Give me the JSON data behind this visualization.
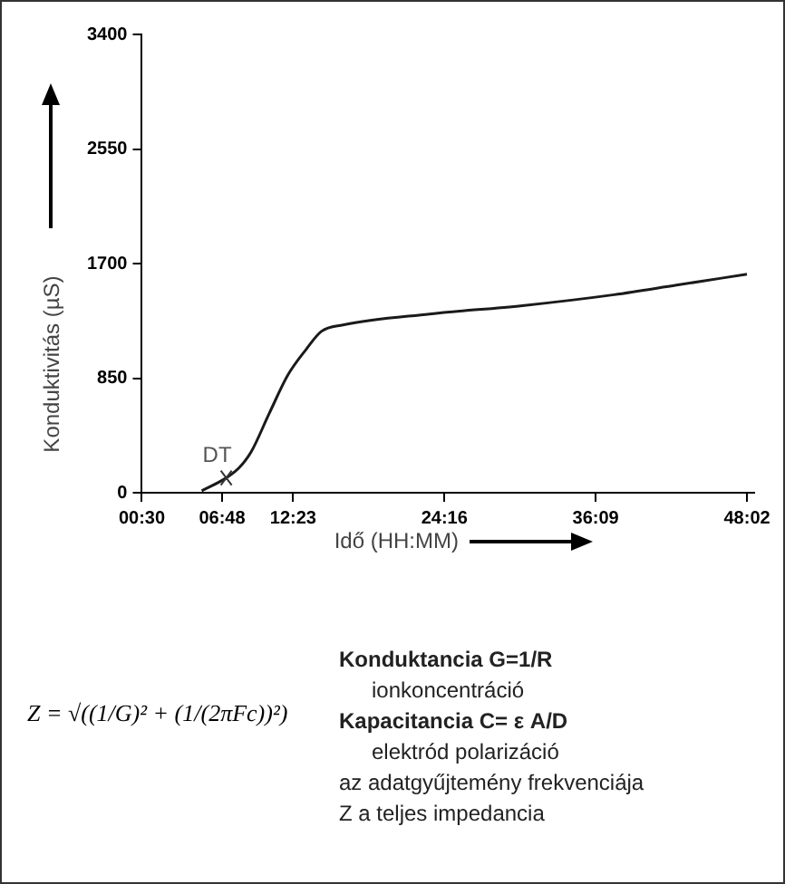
{
  "chart_data": {
    "type": "line",
    "xlabel": "Idő (HH:MM)",
    "ylabel": "Konduktivitás (µS)",
    "x": [
      5.2,
      7.13,
      8.1,
      9.07,
      10.5,
      11.97,
      13.4,
      14.6,
      16.3,
      23.1,
      30.4,
      37.6,
      42.5,
      48.03
    ],
    "series": [
      {
        "color": "#1a1a1a",
        "values": [
          14,
          110,
          181,
          300,
          587,
          873,
          1063,
          1197,
          1245,
          1326,
          1388,
          1469,
          1540,
          1621
        ]
      }
    ],
    "xlim": [
      0.5,
      48.6
    ],
    "xticks": [
      {
        "value": 0.5,
        "label": "00:30"
      },
      {
        "value": 6.8,
        "label": "06:48"
      },
      {
        "value": 12.383,
        "label": "12:23"
      },
      {
        "value": 24.267,
        "label": "24:16"
      },
      {
        "value": 36.15,
        "label": "36:09"
      },
      {
        "value": 48.033,
        "label": "48:02"
      }
    ],
    "ylim": [
      0,
      3400
    ],
    "yticks": [
      0,
      850,
      1700,
      2550,
      3400
    ],
    "grid": false,
    "legend": false,
    "marker": "none",
    "line_style": "solid",
    "annotations": [
      {
        "text": "DT",
        "x": 7.13,
        "y": 110
      },
      "Z = √((1/G)² + (1/(2πFc))²)",
      "Konduktancia G=1/R",
      "ionkoncentráció",
      "Kapacitancia C= ε A/D",
      "elektród polarizáció",
      "az adatgyűjtemény frekvenciája",
      "Z a teljes impedancia"
    ]
  }
}
